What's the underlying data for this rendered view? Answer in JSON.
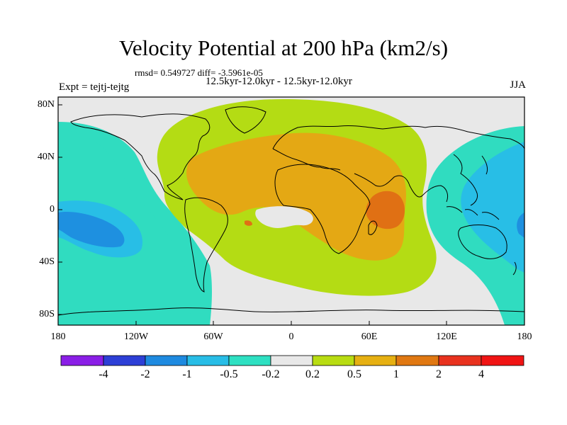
{
  "title": "Velocity Potential at 200 hPa (km2/s)",
  "stats": "rmsd= 0.549727 diff= -3.5961e-05",
  "subtitle": "12.5kyr-12.0kyr - 12.5kyr-12.0kyr",
  "expt": "Expt = tejtj-tejtg",
  "season": "JJA",
  "lat_labels": [
    "80N",
    "40N",
    "0",
    "40S",
    "80S"
  ],
  "lon_labels": [
    "180",
    "120W",
    "60W",
    "0",
    "60E",
    "120E",
    "180"
  ],
  "colorbar": {
    "labels": [
      "-4",
      "-2",
      "-1",
      "-0.5",
      "-0.2",
      "0.2",
      "0.5",
      "1",
      "2",
      "4"
    ],
    "colors": [
      "#8a1ee6",
      "#2d3fd6",
      "#1e8ae0",
      "#28bde6",
      "#2ee0c2",
      "#e8e8e8",
      "#b8dc12",
      "#e6b012",
      "#e07812",
      "#e8321e",
      "#f01414"
    ]
  },
  "palette": {
    "ocean_bg": "#e8e8e8",
    "cyan": "#30dcc0",
    "sky": "#28bee6",
    "blue": "#1e90e0",
    "lime": "#b4dc14",
    "gold": "#e4a814",
    "orange": "#e07014",
    "coast": "#000000"
  }
}
